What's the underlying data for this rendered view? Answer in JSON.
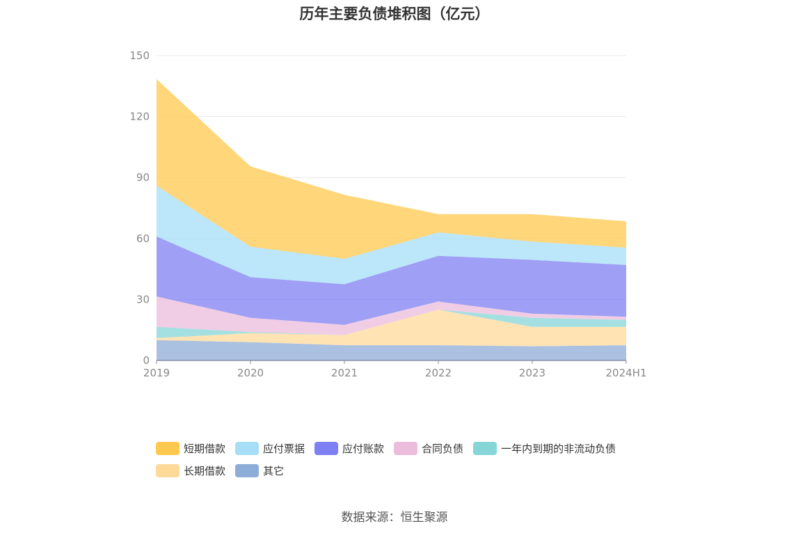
{
  "title": "历年主要负债堆积图（亿元）",
  "source": "数据来源：恒生聚源",
  "chart_data": {
    "type": "area",
    "stacked": true,
    "x": [
      "2019",
      "2020",
      "2021",
      "2022",
      "2023",
      "2024H1"
    ],
    "ylim": [
      0,
      150
    ],
    "yticks": [
      0,
      30,
      60,
      90,
      120,
      150
    ],
    "grid": true,
    "legend_position": "bottom",
    "series": [
      {
        "name": "其它",
        "color": "#8eacd8",
        "values": [
          10.0,
          9.0,
          7.5,
          7.5,
          7.0,
          7.5
        ]
      },
      {
        "name": "长期借款",
        "color": "#ffd99a",
        "values": [
          1.0,
          4.5,
          5.0,
          17.5,
          9.5,
          9.0
        ]
      },
      {
        "name": "一年内到期的非流动负债",
        "color": "#86d6d8",
        "values": [
          5.5,
          0.5,
          0.0,
          0.0,
          4.5,
          3.5
        ]
      },
      {
        "name": "合同负债",
        "color": "#ebbcdc",
        "values": [
          15.0,
          7.0,
          5.0,
          4.0,
          2.0,
          1.5
        ]
      },
      {
        "name": "应付账款",
        "color": "#7d7ff2",
        "values": [
          29.5,
          20.0,
          20.0,
          22.5,
          26.5,
          25.5
        ]
      },
      {
        "name": "应付票据",
        "color": "#a6def8",
        "values": [
          25.0,
          15.0,
          12.5,
          11.5,
          9.0,
          8.5
        ]
      },
      {
        "name": "短期借款",
        "color": "#ffc84e",
        "values": [
          52.5,
          39.5,
          31.5,
          9.0,
          13.5,
          13.0
        ]
      }
    ]
  },
  "legend": [
    [
      {
        "name": "短期借款",
        "color": "#ffc84e"
      },
      {
        "name": "应付票据",
        "color": "#a6def8"
      },
      {
        "name": "应付账款",
        "color": "#7d7ff2"
      },
      {
        "name": "合同负债",
        "color": "#ebbcdc"
      },
      {
        "name": "一年内到期的非流动负债",
        "color": "#86d6d8"
      }
    ],
    [
      {
        "name": "长期借款",
        "color": "#ffd99a"
      },
      {
        "name": "其它",
        "color": "#8eacd8"
      }
    ]
  ]
}
